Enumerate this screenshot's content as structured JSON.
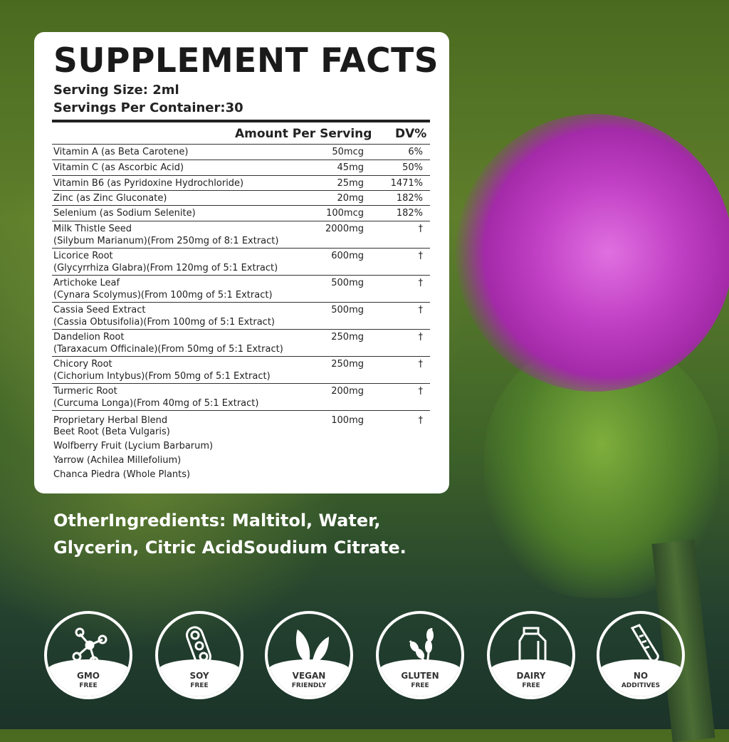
{
  "facts": {
    "title": "SUPPLEMENT FACTS",
    "serving_size": "Serving Size: 2ml",
    "servings_per_container": "Servings Per Container:30",
    "header_amount": "Amount Per Serving",
    "header_dv": "DV%",
    "rows": [
      {
        "name": "Vitamin A (as Beta Carotene)",
        "sub": "",
        "amount": "50mcg",
        "dv": "6%"
      },
      {
        "name": "Vitamin C (as Ascorbic Acid)",
        "sub": "",
        "amount": "45mg",
        "dv": "50%"
      },
      {
        "name": "Vitamin B6 (as Pyridoxine Hydrochloride)",
        "sub": "",
        "amount": "25mg",
        "dv": "1471%"
      },
      {
        "name": "Zinc (as Zinc Gluconate)",
        "sub": "",
        "amount": "20mg",
        "dv": "182%"
      },
      {
        "name": "Selenium (as Sodium Selenite)",
        "sub": "",
        "amount": "100mcg",
        "dv": "182%"
      },
      {
        "name": "Milk Thistle Seed",
        "sub": "(Silybum Marianum)(From 250mg of 8:1 Extract)",
        "amount": "2000mg",
        "dv": "†"
      },
      {
        "name": "Licorice Root",
        "sub": "(Glycyrrhiza Glabra)(From 120mg of 5:1 Extract)",
        "amount": "600mg",
        "dv": "†"
      },
      {
        "name": "Artichoke Leaf",
        "sub": "(Cynara Scolymus)(From 100mg of 5:1 Extract)",
        "amount": "500mg",
        "dv": "†"
      },
      {
        "name": "Cassia Seed Extract",
        "sub": "(Cassia Obtusifolia)(From 100mg of 5:1 Extract)",
        "amount": "500mg",
        "dv": "†"
      },
      {
        "name": "Dandelion Root",
        "sub": "(Taraxacum Officinale)(From 50mg of 5:1 Extract)",
        "amount": "250mg",
        "dv": "†"
      },
      {
        "name": "Chicory Root",
        "sub": "(Cichorium Intybus)(From 50mg of 5:1 Extract)",
        "amount": "250mg",
        "dv": "†"
      },
      {
        "name": "Turmeric Root",
        "sub": "(Curcuma Longa)(From 40mg of 5:1 Extract)",
        "amount": "200mg",
        "dv": "†"
      },
      {
        "name": "Proprietary Herbal Blend",
        "sub": "",
        "amount": "100mg",
        "dv": "†"
      }
    ],
    "blend_items": [
      "Beet Root (Beta Vulgaris)",
      "Wolfberry Fruit (Lycium Barbarum)",
      "Yarrow (Achilea Millefolium)",
      "Chanca Piedra (Whole Plants)"
    ]
  },
  "other_ingredients": "OtherIngredients: Maltitol, Water, Glycerin, Citric AcidSoudium Citrate.",
  "badges": [
    {
      "icon": "molecule-icon",
      "l1": "GMO",
      "l2": "FREE"
    },
    {
      "icon": "soybean-icon",
      "l1": "SOY",
      "l2": "FREE"
    },
    {
      "icon": "leaf-icon",
      "l1": "VEGAN",
      "l2": "FRIENDLY"
    },
    {
      "icon": "wheat-icon",
      "l1": "GLUTEN",
      "l2": "FREE"
    },
    {
      "icon": "milk-carton-icon",
      "l1": "DAIRY",
      "l2": "FREE"
    },
    {
      "icon": "test-tube-icon",
      "l1": "NO",
      "l2": "ADDITIVES"
    }
  ]
}
